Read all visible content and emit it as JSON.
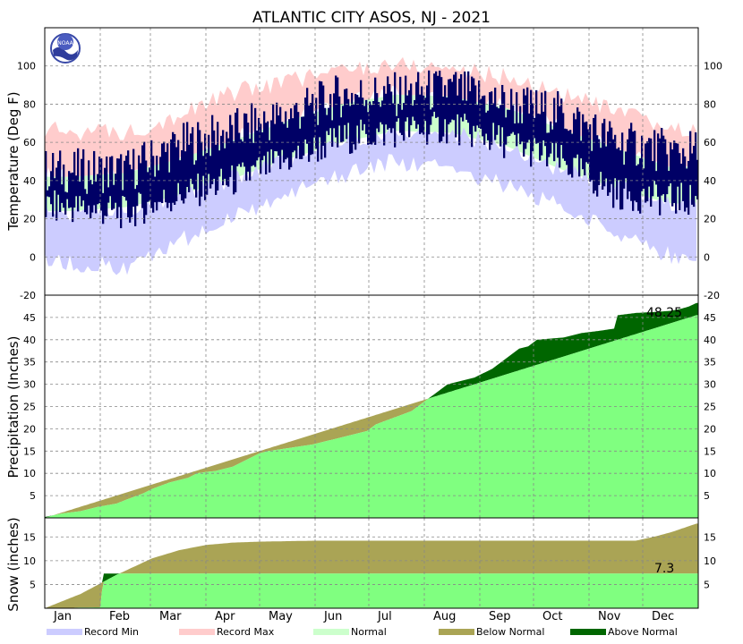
{
  "title": "ATLANTIC CITY  ASOS, NJ - 2021",
  "logo_text": "NOAA",
  "legend": [
    {
      "label": "Record Min",
      "color": "#ccccff"
    },
    {
      "label": "Record Max",
      "color": "#ffcccc"
    },
    {
      "label": "Normal",
      "color": "#ccffcc"
    },
    {
      "label": "Below Normal",
      "color": "#aaa455"
    },
    {
      "label": "Above Normal",
      "color": "#006600"
    }
  ],
  "colors": {
    "observed": "#000066",
    "record_min": "#ccccff",
    "record_max": "#ffcccc",
    "normal": "#ccffcc",
    "normal_accum": "#80ff80",
    "above_normal": "#006600",
    "below_normal": "#aaa455"
  },
  "chart_data": [
    {
      "type": "area",
      "panel": "temperature",
      "ylabel": "Temperature (Deg F)",
      "ylim": [
        -20,
        120
      ],
      "yticks": [
        -20,
        0,
        20,
        40,
        60,
        80,
        100
      ],
      "grid": true,
      "months": [
        "Jan",
        "Feb",
        "Mar",
        "Apr",
        "May",
        "Jun",
        "Jul",
        "Aug",
        "Sep",
        "Oct",
        "Nov",
        "Dec"
      ],
      "series": [
        {
          "key": "record_max",
          "values": [
            66,
            65,
            74,
            86,
            92,
            98,
            101,
            99,
            94,
            86,
            76,
            67
          ]
        },
        {
          "key": "normal_high",
          "values": [
            42,
            44,
            51,
            61,
            71,
            80,
            85,
            84,
            78,
            67,
            57,
            47
          ]
        },
        {
          "key": "normal_low",
          "values": [
            24,
            26,
            32,
            41,
            51,
            60,
            66,
            65,
            58,
            46,
            36,
            28
          ]
        },
        {
          "key": "record_min",
          "values": [
            -3,
            -5,
            8,
            20,
            32,
            42,
            50,
            47,
            37,
            26,
            14,
            1
          ]
        },
        {
          "key": "observed_high",
          "values": [
            45,
            45,
            58,
            66,
            74,
            85,
            85,
            88,
            80,
            75,
            60,
            55
          ]
        },
        {
          "key": "observed_low",
          "values": [
            28,
            25,
            34,
            42,
            53,
            64,
            68,
            70,
            62,
            52,
            35,
            32
          ]
        }
      ]
    },
    {
      "type": "area",
      "panel": "precipitation",
      "ylabel": "Precipitation (Inches)",
      "ylim": [
        0,
        50
      ],
      "yticks": [
        5,
        10,
        15,
        20,
        25,
        30,
        35,
        40,
        45
      ],
      "grid": true,
      "annotation": "48.25",
      "series": [
        {
          "name": "Observed",
          "key": "observed_accum",
          "x": [
            0,
            10,
            20,
            30,
            40,
            45,
            55,
            60,
            70,
            80,
            85,
            90,
            95,
            100,
            105,
            110,
            115,
            120,
            125,
            150,
            155,
            160,
            165,
            170,
            180,
            185,
            195,
            205,
            215,
            225,
            230,
            240,
            245,
            250,
            255,
            260,
            265,
            270,
            275,
            290,
            300,
            310,
            318,
            320,
            330,
            340,
            350,
            356,
            360,
            364
          ],
          "values": [
            0.2,
            1.0,
            1.5,
            2.5,
            3.2,
            4.0,
            5.5,
            6.5,
            8.0,
            9.0,
            10.0,
            10.3,
            10.5,
            11.0,
            11.5,
            12.5,
            13.5,
            14.5,
            15.0,
            16.5,
            17.0,
            17.5,
            18.0,
            18.5,
            19.5,
            21.0,
            22.5,
            24.0,
            27.0,
            30.0,
            30.5,
            31.5,
            32.5,
            33.5,
            35.0,
            36.5,
            38.0,
            38.5,
            40.0,
            40.5,
            41.5,
            42.0,
            42.5,
            45.5,
            46.0,
            46.2,
            46.5,
            47.0,
            47.5,
            48.25
          ]
        },
        {
          "name": "Normal",
          "key": "normal_accum",
          "x": [
            0,
            364
          ],
          "values": [
            0,
            45.5
          ]
        }
      ]
    },
    {
      "type": "area",
      "panel": "snow",
      "ylabel": "Snow (inches)",
      "ylim": [
        0,
        19
      ],
      "yticks": [
        5,
        10,
        15
      ],
      "grid": true,
      "annotation": "7.3",
      "series": [
        {
          "name": "Observed",
          "key": "observed_accum",
          "x": [
            0,
            31,
            33,
            364
          ],
          "values": [
            0,
            0.2,
            7.3,
            7.3
          ]
        },
        {
          "name": "Normal",
          "key": "normal_accum",
          "x": [
            0,
            20,
            40,
            60,
            75,
            90,
            105,
            120,
            150,
            200,
            250,
            300,
            330,
            340,
            350,
            364
          ],
          "values": [
            0,
            3.0,
            7.0,
            10.5,
            12.2,
            13.3,
            13.8,
            14.0,
            14.2,
            14.2,
            14.2,
            14.2,
            14.2,
            15.0,
            16.0,
            17.8
          ]
        }
      ]
    }
  ]
}
